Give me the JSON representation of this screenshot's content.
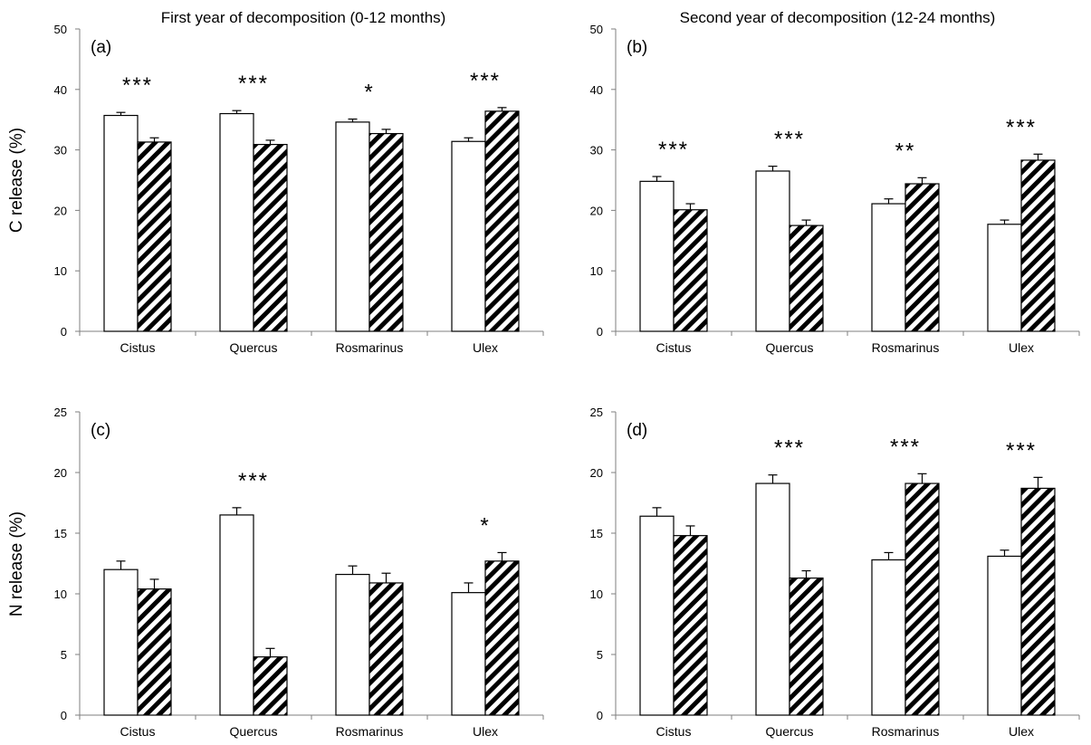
{
  "titles": {
    "left": "First year of decomposition (0-12 months)",
    "right": "Second year of decomposition (12-24 months)"
  },
  "ylabels": {
    "top": "C release (%)",
    "bottom": "N release (%)"
  },
  "legend": {
    "series": [
      {
        "pattern": "open",
        "fill": "#ffffff"
      },
      {
        "pattern": "hatched",
        "fill": "#000000"
      }
    ]
  },
  "chart_data": [
    {
      "type": "bar",
      "panel_label": "(a)",
      "categories": [
        "Cistus",
        "Quercus",
        "Rosmarinus",
        "Ulex"
      ],
      "series": [
        {
          "pattern": "open",
          "values": [
            35.7,
            36.0,
            34.6,
            31.4
          ],
          "errors": [
            0.5,
            0.5,
            0.5,
            0.6
          ]
        },
        {
          "pattern": "hatched",
          "values": [
            31.3,
            30.9,
            32.7,
            36.4
          ],
          "errors": [
            0.7,
            0.7,
            0.7,
            0.6
          ]
        }
      ],
      "significance": [
        "***",
        "***",
        "*",
        "***"
      ],
      "ylim": [
        0,
        50
      ],
      "yticks": [
        0,
        10,
        20,
        30,
        40,
        50
      ],
      "ylabel": "C release (%)",
      "title": "First year of decomposition (0-12 months)"
    },
    {
      "type": "bar",
      "panel_label": "(b)",
      "categories": [
        "Cistus",
        "Quercus",
        "Rosmarinus",
        "Ulex"
      ],
      "series": [
        {
          "pattern": "open",
          "values": [
            24.8,
            26.5,
            21.1,
            17.7
          ],
          "errors": [
            0.8,
            0.8,
            0.8,
            0.7
          ]
        },
        {
          "pattern": "hatched",
          "values": [
            20.1,
            17.5,
            24.4,
            28.3
          ],
          "errors": [
            1.0,
            0.9,
            1.0,
            1.0
          ]
        }
      ],
      "significance": [
        "***",
        "***",
        "**",
        "***"
      ],
      "ylim": [
        0,
        50
      ],
      "yticks": [
        0,
        10,
        20,
        30,
        40,
        50
      ],
      "title": "Second year of decomposition (12-24 months)"
    },
    {
      "type": "bar",
      "panel_label": "(c)",
      "categories": [
        "Cistus",
        "Quercus",
        "Rosmarinus",
        "Ulex"
      ],
      "series": [
        {
          "pattern": "open",
          "values": [
            12.0,
            16.5,
            11.6,
            10.1
          ],
          "errors": [
            0.7,
            0.6,
            0.7,
            0.8
          ]
        },
        {
          "pattern": "hatched",
          "values": [
            10.4,
            4.8,
            10.9,
            12.7
          ],
          "errors": [
            0.8,
            0.7,
            0.8,
            0.7
          ]
        }
      ],
      "significance": [
        "",
        "***",
        "",
        "*"
      ],
      "ylim": [
        0,
        25
      ],
      "yticks": [
        0,
        5,
        10,
        15,
        20,
        25
      ],
      "ylabel": "N release (%)"
    },
    {
      "type": "bar",
      "panel_label": "(d)",
      "categories": [
        "Cistus",
        "Quercus",
        "Rosmarinus",
        "Ulex"
      ],
      "series": [
        {
          "pattern": "open",
          "values": [
            16.4,
            19.1,
            12.8,
            13.1
          ],
          "errors": [
            0.7,
            0.7,
            0.6,
            0.5
          ]
        },
        {
          "pattern": "hatched",
          "values": [
            14.8,
            11.3,
            19.1,
            18.7
          ],
          "errors": [
            0.8,
            0.6,
            0.8,
            0.9
          ]
        }
      ],
      "significance": [
        "",
        "***",
        "***",
        "***"
      ],
      "ylim": [
        0,
        25
      ],
      "yticks": [
        0,
        5,
        10,
        15,
        20,
        25
      ]
    }
  ]
}
